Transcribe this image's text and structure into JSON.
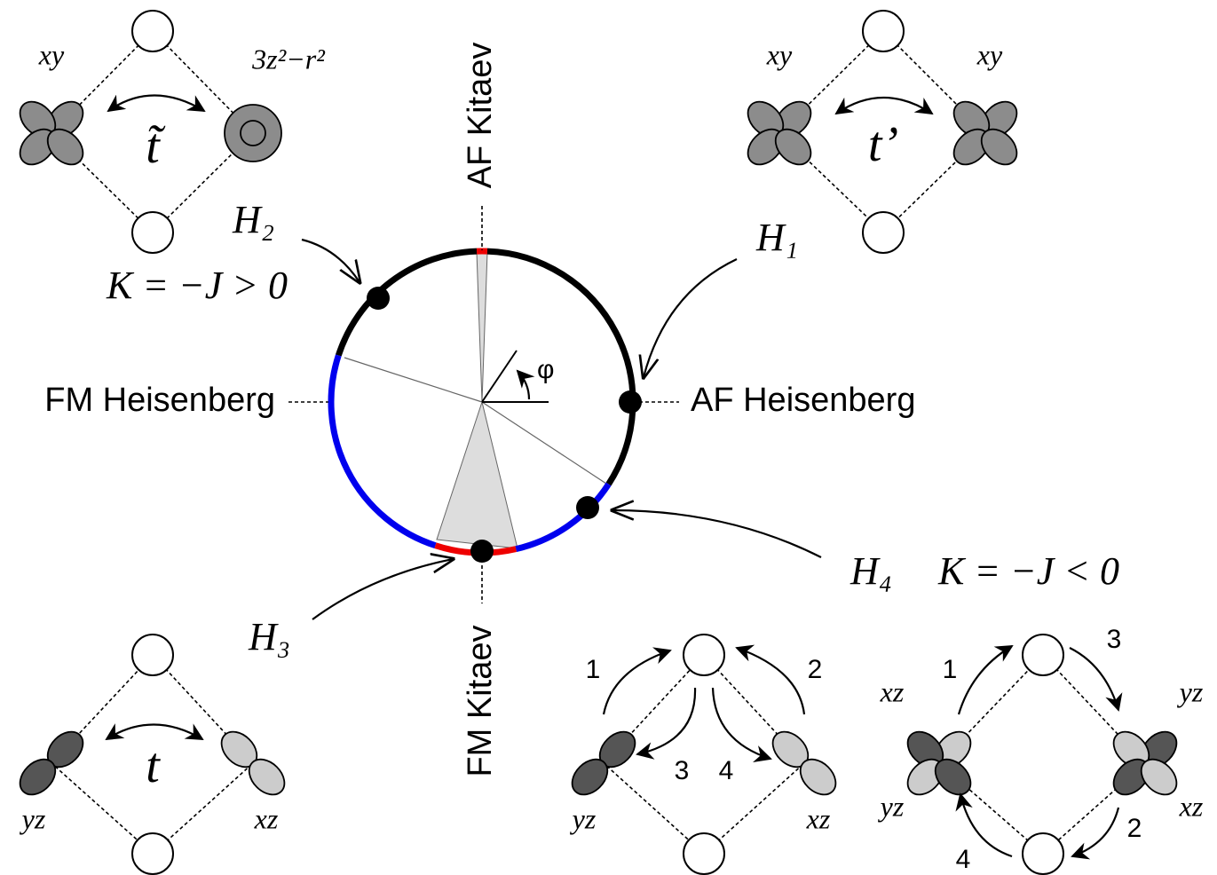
{
  "phase_circle": {
    "af_kitaev": "AF Kitaev",
    "fm_kitaev": "FM Kitaev",
    "fm_heisenberg": "FM Heisenberg",
    "af_heisenberg": "AF Heisenberg",
    "angle": "φ",
    "h1": "H₁",
    "h2": "H₂",
    "h3": "H₃",
    "h4": "H₄",
    "h2_condition": "K = −J > 0",
    "h4_condition": "K = −J < 0"
  },
  "panels": {
    "top_left": {
      "left_orbital": "xy",
      "right_orbital": "3z²−r²",
      "hopping": "t̃"
    },
    "top_right": {
      "left_orbital": "xy",
      "right_orbital": "xy",
      "hopping": "t’"
    },
    "bottom_left": {
      "left_orbital": "yz",
      "right_orbital": "xz",
      "hopping": "t"
    },
    "bottom_middle": {
      "left_orbital": "yz",
      "right_orbital": "xz",
      "steps": [
        "1",
        "2",
        "3",
        "4"
      ]
    },
    "bottom_right": {
      "left_top_orbital": "xz",
      "left_bottom_orbital": "yz",
      "right_top_orbital": "yz",
      "right_bottom_orbital": "xz",
      "steps": [
        "1",
        "2",
        "3",
        "4"
      ]
    }
  }
}
